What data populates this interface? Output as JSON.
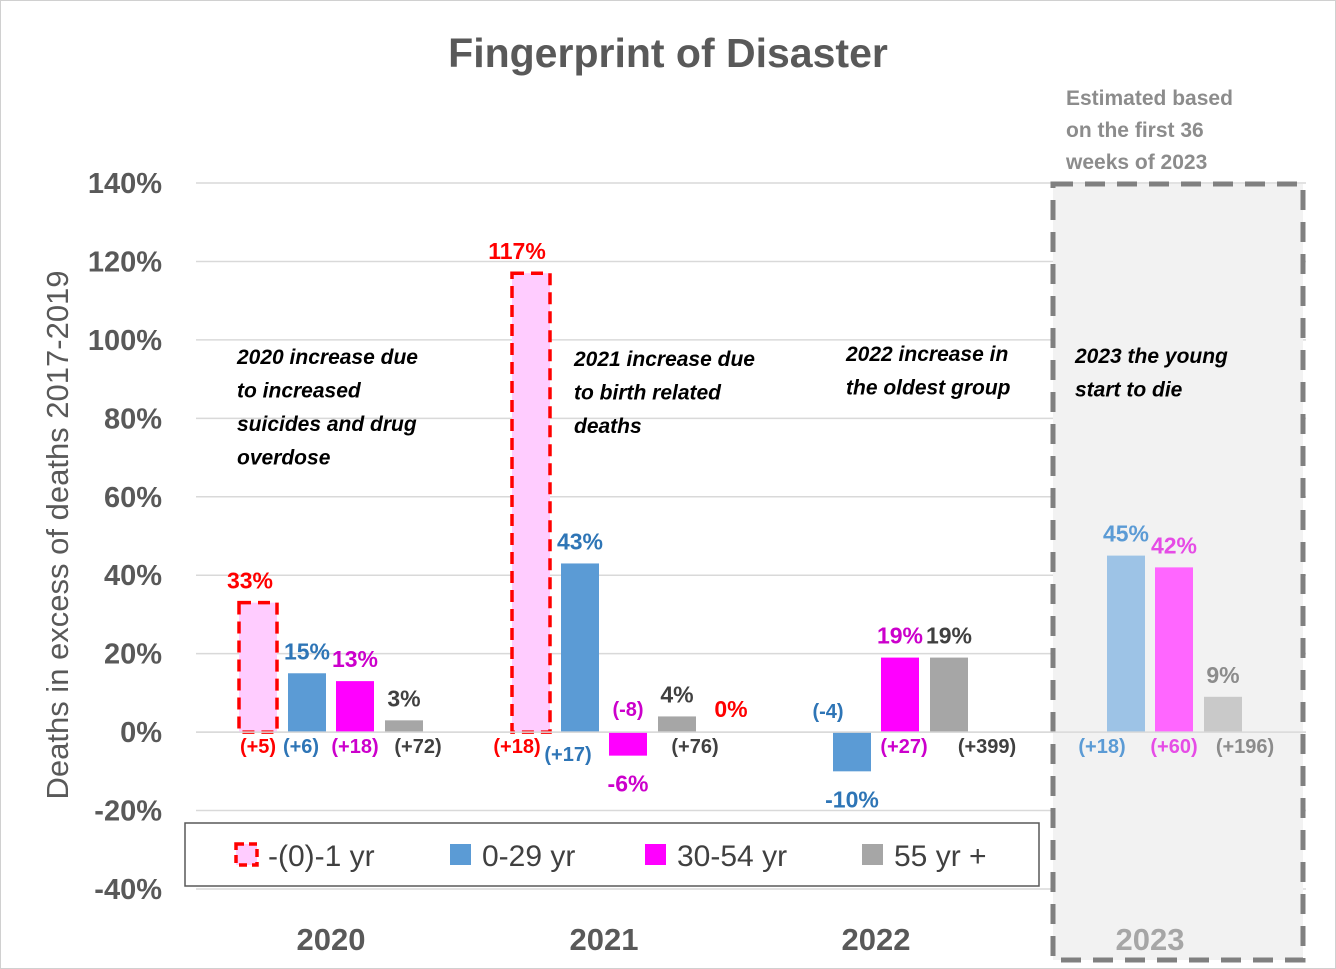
{
  "chart_data": {
    "type": "bar",
    "title": "Fingerprint of Disaster",
    "xlabel": "",
    "ylabel": "Deaths in excess of deaths 2017-2019",
    "ylim": [
      -40,
      140
    ],
    "yticks": [
      "-40%",
      "-20%",
      "0%",
      "20%",
      "40%",
      "60%",
      "80%",
      "100%",
      "120%",
      "140%"
    ],
    "grid": true,
    "legend_position": "bottom-left",
    "categories": [
      "2020",
      "2021",
      "2022",
      "2023"
    ],
    "series": [
      {
        "name": "-(0)-1 yr",
        "color": "#ffccff",
        "border_color": "#ff0000",
        "values": [
          33,
          117,
          0,
          null
        ],
        "value_labels": [
          "33%",
          "117%",
          "0%",
          ""
        ],
        "count_labels": [
          "(+5)",
          "(+18)",
          "",
          ""
        ],
        "label_color": "#ff0000"
      },
      {
        "name": "0-29 yr",
        "color": "#5b9bd5",
        "values": [
          15,
          43,
          -10,
          45
        ],
        "value_labels": [
          "15%",
          "43%",
          "-10%",
          "45%"
        ],
        "count_labels": [
          "(+6)",
          "(+17)",
          "(-4)",
          "(+18)"
        ],
        "label_color": "#2e75b6"
      },
      {
        "name": "30-54 yr",
        "color": "#ff00ff",
        "values": [
          13,
          -6,
          19,
          42
        ],
        "value_labels": [
          "13%",
          "-6%",
          "19%",
          "42%"
        ],
        "count_labels": [
          "(+18)",
          "(-8)",
          "(+27)",
          "(+60)"
        ],
        "label_color": "#cc00cc"
      },
      {
        "name": "55 yr +",
        "color": "#a6a6a6",
        "values": [
          3,
          4,
          19,
          9
        ],
        "value_labels": [
          "3%",
          "4%",
          "19%",
          "9%"
        ],
        "count_labels": [
          "(+72)",
          "(+76)",
          "(+399)",
          "(+196)"
        ],
        "label_color": "#404040"
      }
    ],
    "faded_category": "2023",
    "faded_colors": {
      "0-29 yr": "#9dc3e6",
      "30-54 yr": "#ff66ff",
      "55 yr +": "#c9c9c9",
      "label_0-29 yr": "#5b9bd5",
      "label_30-54 yr": "#e64ce6",
      "label_55 yr +": "#8c8c8c"
    },
    "annotations": [
      {
        "category": "2020",
        "lines": [
          "2020 increase due",
          "to increased",
          "suicides and drug",
          "overdose"
        ]
      },
      {
        "category": "2021",
        "lines": [
          "2021 increase due",
          "to birth related",
          "deaths"
        ]
      },
      {
        "category": "2022",
        "lines": [
          "2022 increase in",
          "the oldest group"
        ]
      },
      {
        "category": "2023",
        "lines": [
          "2023 the young",
          "start to die"
        ]
      }
    ],
    "estimate_note": [
      "Estimated based",
      "on the first 36",
      "weeks of 2023"
    ]
  }
}
